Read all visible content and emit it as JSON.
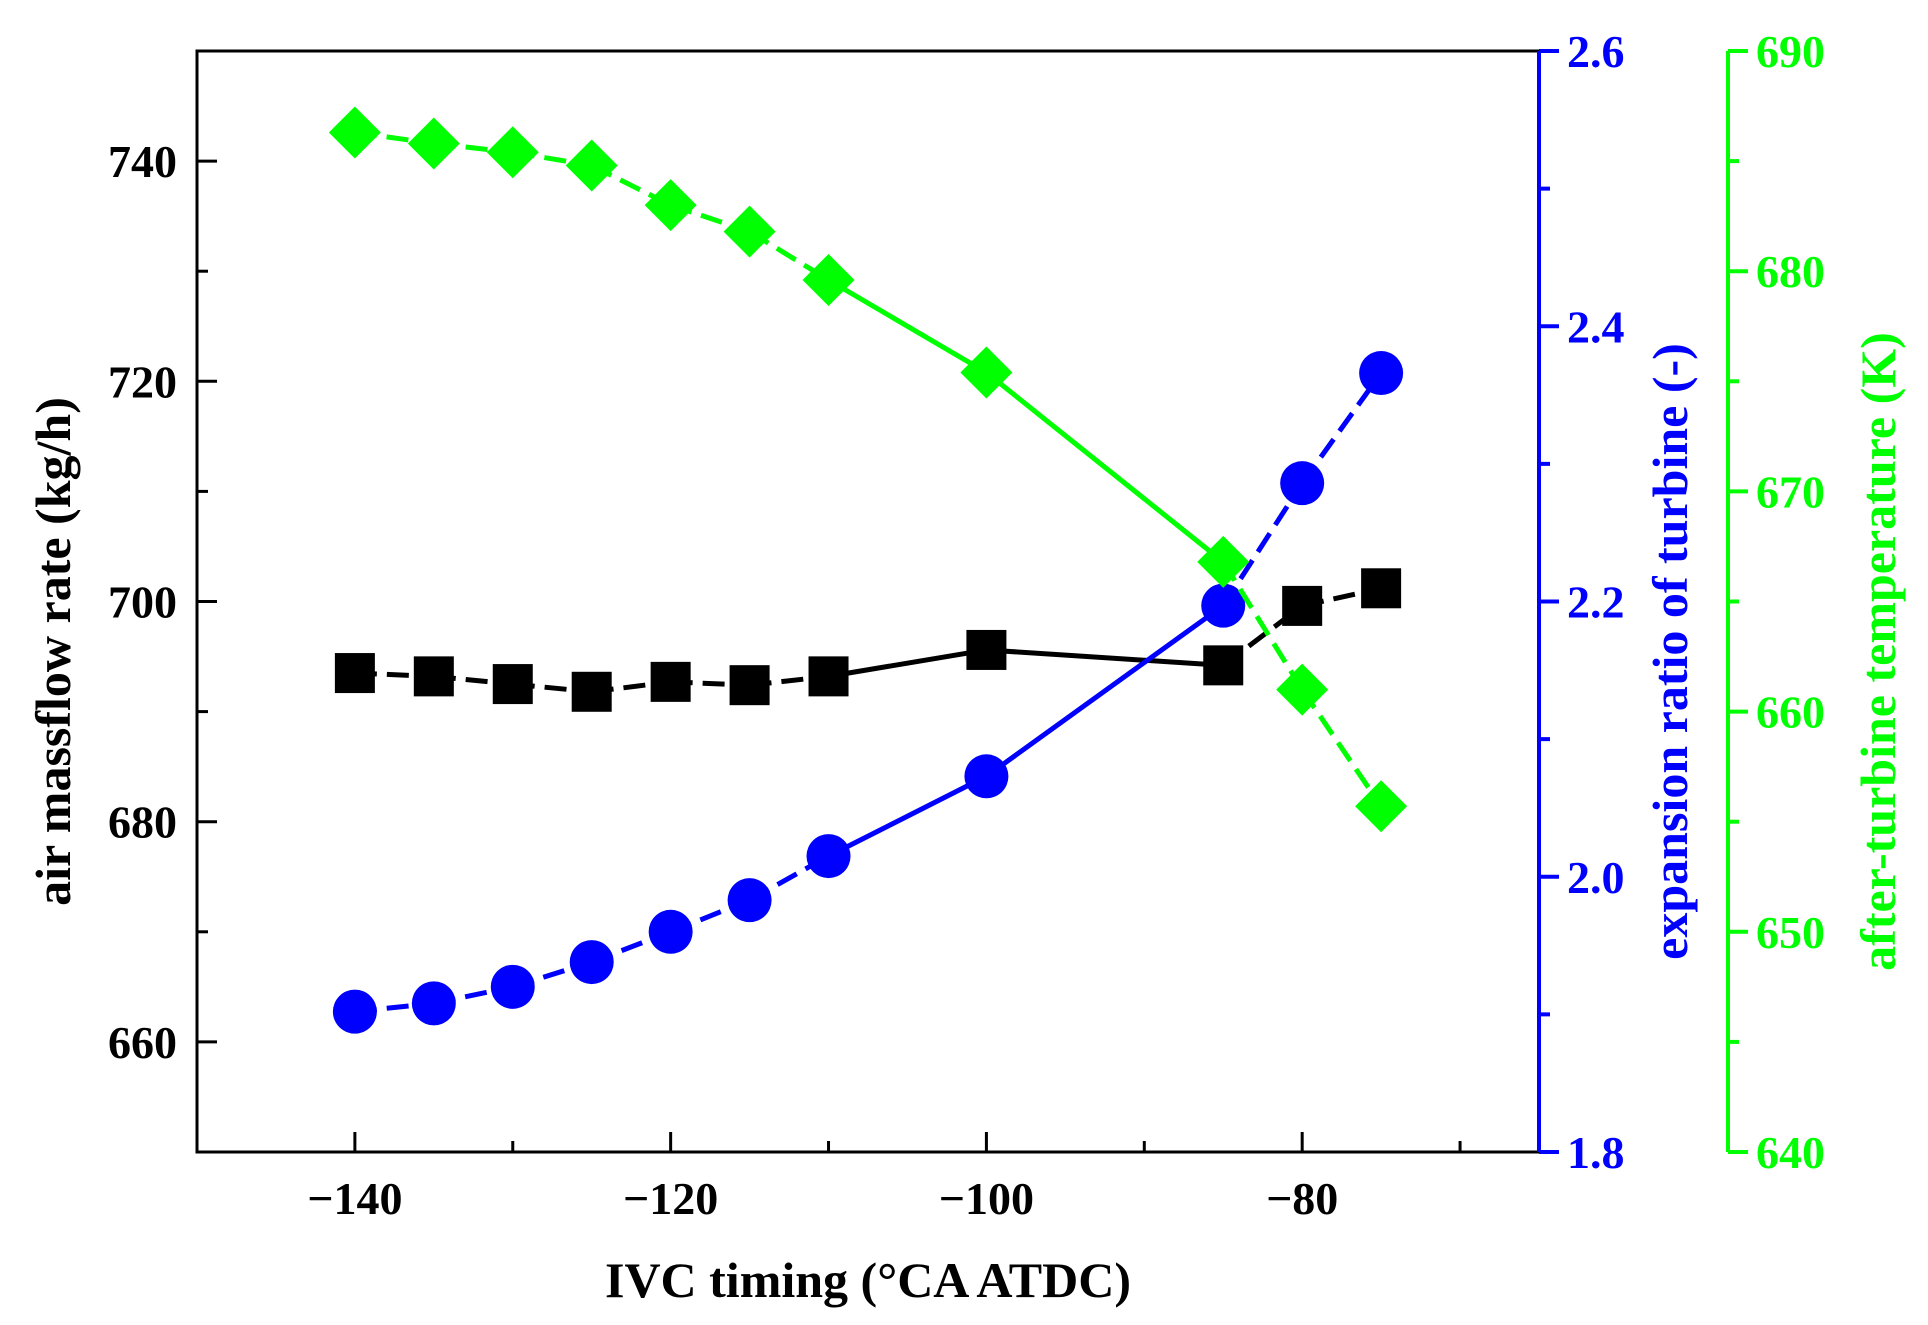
{
  "chart_data": {
    "type": "line",
    "title": "",
    "xlabel": "IVC timing (°CA ATDC)",
    "xlim": [
      -150,
      -65
    ],
    "xticks": [
      -140,
      -120,
      -100,
      -80
    ],
    "x_minor_ticks": [
      -130,
      -110,
      -90,
      -70
    ],
    "axes": [
      {
        "id": "left",
        "label": "air massflow rate (kg/h)",
        "color": "#000000",
        "ylim": [
          650,
          750
        ],
        "ticks": [
          660,
          680,
          700,
          720,
          740
        ],
        "minor_ticks": [
          670,
          690,
          710,
          730,
          750
        ]
      },
      {
        "id": "right1",
        "label": "expansion ratio of turbine (-)",
        "color": "#0000ff",
        "ylim": [
          1.8,
          2.6
        ],
        "ticks": [
          "1.8",
          "2.0",
          "2.2",
          "2.4",
          "2.6"
        ],
        "minor_ticks": [
          1.9,
          2.1,
          2.3,
          2.5
        ]
      },
      {
        "id": "right2",
        "label": "after-turbine temperature (K)",
        "color": "#00ff00",
        "ylim": [
          640,
          690
        ],
        "ticks": [
          640,
          650,
          660,
          670,
          680,
          690
        ],
        "minor_ticks": [
          645,
          655,
          665,
          675,
          685
        ]
      }
    ],
    "series": [
      {
        "name": "air massflow rate",
        "axis": "left",
        "marker": "square",
        "color": "#000000",
        "x": [
          -140,
          -135,
          -130,
          -125,
          -120,
          -115,
          -110,
          -100,
          -85,
          -80,
          -75
        ],
        "values": [
          693.5,
          693.2,
          692.5,
          691.8,
          692.7,
          692.4,
          693.2,
          695.6,
          694.2,
          699.6,
          701.2
        ]
      },
      {
        "name": "expansion ratio of turbine",
        "axis": "right1",
        "marker": "circle",
        "color": "#0000ff",
        "x": [
          -140,
          -135,
          -130,
          -125,
          -120,
          -115,
          -110,
          -100,
          -85,
          -80,
          -75
        ],
        "values": [
          1.902,
          1.908,
          1.92,
          1.938,
          1.96,
          1.983,
          2.015,
          2.073,
          2.197,
          2.286,
          2.366
        ]
      },
      {
        "name": "after-turbine temperature",
        "axis": "right2",
        "marker": "diamond",
        "color": "#00ff00",
        "x": [
          -140,
          -135,
          -130,
          -125,
          -120,
          -115,
          -110,
          -100,
          -85,
          -80,
          -75
        ],
        "values": [
          686.3,
          685.8,
          685.4,
          684.8,
          683.0,
          681.8,
          679.6,
          675.4,
          666.8,
          661.0,
          655.7
        ]
      }
    ]
  }
}
